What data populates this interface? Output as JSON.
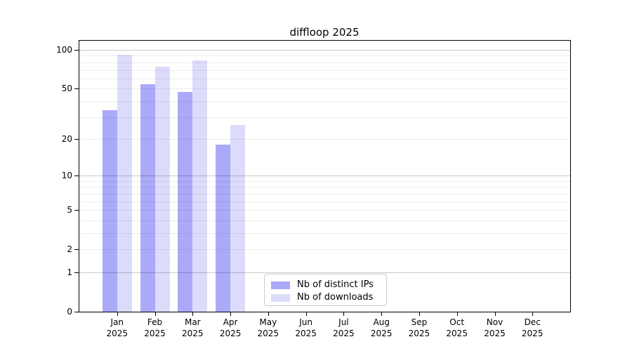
{
  "chart_data": {
    "type": "bar",
    "title": "diffloop 2025",
    "categories": [
      "Jan",
      "Feb",
      "Mar",
      "Apr",
      "May",
      "Jun",
      "Jul",
      "Aug",
      "Sep",
      "Oct",
      "Nov",
      "Dec"
    ],
    "category_year": "2025",
    "series": [
      {
        "name": "Nb of distinct IPs",
        "color": "#aaaaf8",
        "values": [
          34,
          54,
          47,
          18,
          null,
          null,
          null,
          null,
          null,
          null,
          null,
          null
        ]
      },
      {
        "name": "Nb of downloads",
        "color": "#dcdcfa",
        "values": [
          92,
          74,
          83,
          26,
          null,
          null,
          null,
          null,
          null,
          null,
          null,
          null
        ]
      }
    ],
    "y_axis": {
      "scale": "log10(value+1)",
      "tick_labels": [
        0,
        1,
        2,
        5,
        10,
        20,
        50,
        100
      ],
      "major_gridlines": [
        1,
        10,
        100
      ],
      "minor_gridlines": [
        2,
        3,
        4,
        5,
        6,
        7,
        8,
        9,
        20,
        30,
        40,
        50,
        60,
        70,
        80,
        90
      ],
      "range": [
        0,
        100
      ]
    },
    "x_axis": {
      "label_line2": "2025"
    },
    "legend": {
      "position": "bottom-center",
      "entries": [
        "Nb of distinct IPs",
        "Nb of downloads"
      ]
    },
    "grid": true,
    "colors": {
      "ips_bar": "#aaaaf8",
      "downloads_bar": "#dcdcfa",
      "major_grid": "#cdcdcd",
      "minor_grid": "#efefef",
      "frame": "#000000"
    }
  }
}
